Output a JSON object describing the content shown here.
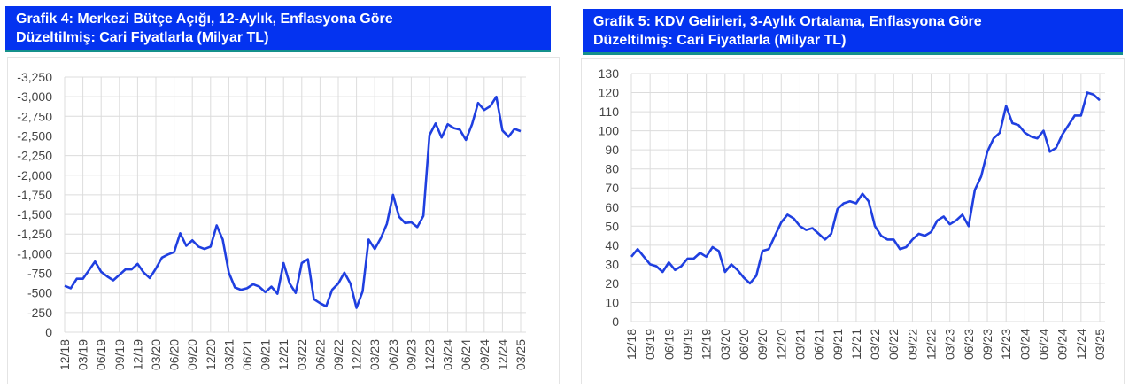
{
  "charts": [
    {
      "title_line1": "Grafik 4: Merkezi Bütçe Açığı, 12-Aylık, Enflasyona Göre",
      "title_line2": "Düzeltilmiş: Cari Fiyatlarla (Milyar TL)"
    },
    {
      "title_line1": "Grafik 5: KDV Gelirleri, 3-Aylık Ortalama, Enflasyona Göre",
      "title_line2": "Düzeltilmiş: Cari Fiyatlarla (Milyar TL)"
    }
  ],
  "colors": {
    "line": "#1f3fe0",
    "title_bg": "#0433f0",
    "grid": "#dcdcdc"
  },
  "chart_data": [
    {
      "type": "line",
      "title": "Grafik 4: Merkezi Bütçe Açığı, 12-Aylık, Enflasyona Göre Düzeltilmiş: Cari Fiyatlarla (Milyar TL)",
      "xlabel": "",
      "ylabel": "",
      "ylim": [
        0,
        3250
      ],
      "grid": true,
      "y_ticks": [
        0,
        250,
        500,
        750,
        1000,
        1250,
        1500,
        1750,
        2000,
        2250,
        2500,
        2750,
        3000,
        3250
      ],
      "y_tick_labels": [
        "0",
        "-250",
        "-500",
        "-750",
        "-1,000",
        "-1,250",
        "-1,500",
        "-1,750",
        "-2,000",
        "-2,250",
        "-2,500",
        "-2,750",
        "-3,000",
        "-3,250"
      ],
      "x_tick_labels": [
        "12/18",
        "03/19",
        "06/19",
        "09/19",
        "12/19",
        "03/20",
        "06/20",
        "09/20",
        "12/20",
        "03/21",
        "06/21",
        "09/21",
        "12/21",
        "03/22",
        "06/22",
        "09/22",
        "12/22",
        "03/23",
        "06/23",
        "09/23",
        "12/23",
        "03/24",
        "06/24",
        "09/24",
        "12/24",
        "03/25"
      ],
      "x_tick_every": 3,
      "series": [
        {
          "name": "Bütçe Açığı",
          "values": [
            590,
            560,
            680,
            680,
            790,
            900,
            770,
            710,
            660,
            730,
            800,
            800,
            870,
            760,
            690,
            810,
            950,
            990,
            1020,
            1260,
            1100,
            1170,
            1090,
            1060,
            1090,
            1360,
            1180,
            760,
            570,
            540,
            560,
            610,
            580,
            510,
            580,
            490,
            880,
            620,
            500,
            880,
            930,
            420,
            370,
            330,
            540,
            620,
            760,
            620,
            310,
            520,
            1180,
            1060,
            1200,
            1380,
            1750,
            1470,
            1390,
            1400,
            1340,
            1480,
            2510,
            2660,
            2480,
            2650,
            2600,
            2580,
            2450,
            2650,
            2920,
            2830,
            2880,
            3000,
            2570,
            2490,
            2590,
            2560
          ]
        }
      ]
    },
    {
      "type": "line",
      "title": "Grafik 5: KDV Gelirleri, 3-Aylık Ortalama, Enflasyona Göre Düzeltilmiş: Cari Fiyatlarla (Milyar TL)",
      "xlabel": "",
      "ylabel": "",
      "ylim": [
        0,
        130
      ],
      "grid": true,
      "y_ticks": [
        0,
        10,
        20,
        30,
        40,
        50,
        60,
        70,
        80,
        90,
        100,
        110,
        120,
        130
      ],
      "y_tick_labels": [
        "0",
        "10",
        "20",
        "30",
        "40",
        "50",
        "60",
        "70",
        "80",
        "90",
        "100",
        "110",
        "120",
        "130"
      ],
      "x_tick_labels": [
        "12/18",
        "03/19",
        "06/19",
        "09/19",
        "12/19",
        "03/20",
        "06/20",
        "09/20",
        "12/20",
        "03/21",
        "06/21",
        "09/21",
        "12/21",
        "03/22",
        "06/22",
        "09/22",
        "12/22",
        "03/23",
        "06/23",
        "09/23",
        "12/23",
        "03/24",
        "06/24",
        "09/24",
        "12/24",
        "03/25"
      ],
      "x_tick_every": 3,
      "series": [
        {
          "name": "KDV Gelirleri",
          "values": [
            34,
            38,
            34,
            30,
            29,
            26,
            31,
            27,
            29,
            33,
            33,
            36,
            34,
            39,
            37,
            26,
            30,
            27,
            23,
            20,
            24,
            37,
            38,
            45,
            52,
            56,
            54,
            50,
            48,
            49,
            46,
            43,
            46,
            59,
            62,
            63,
            62,
            67,
            63,
            50,
            45,
            43,
            43,
            38,
            39,
            43,
            46,
            45,
            47,
            53,
            55,
            51,
            53,
            56,
            50,
            69,
            76,
            89,
            96,
            99,
            113,
            104,
            103,
            99,
            97,
            96,
            100,
            89,
            91,
            98,
            103,
            108,
            108,
            120,
            119,
            116
          ]
        }
      ]
    }
  ]
}
